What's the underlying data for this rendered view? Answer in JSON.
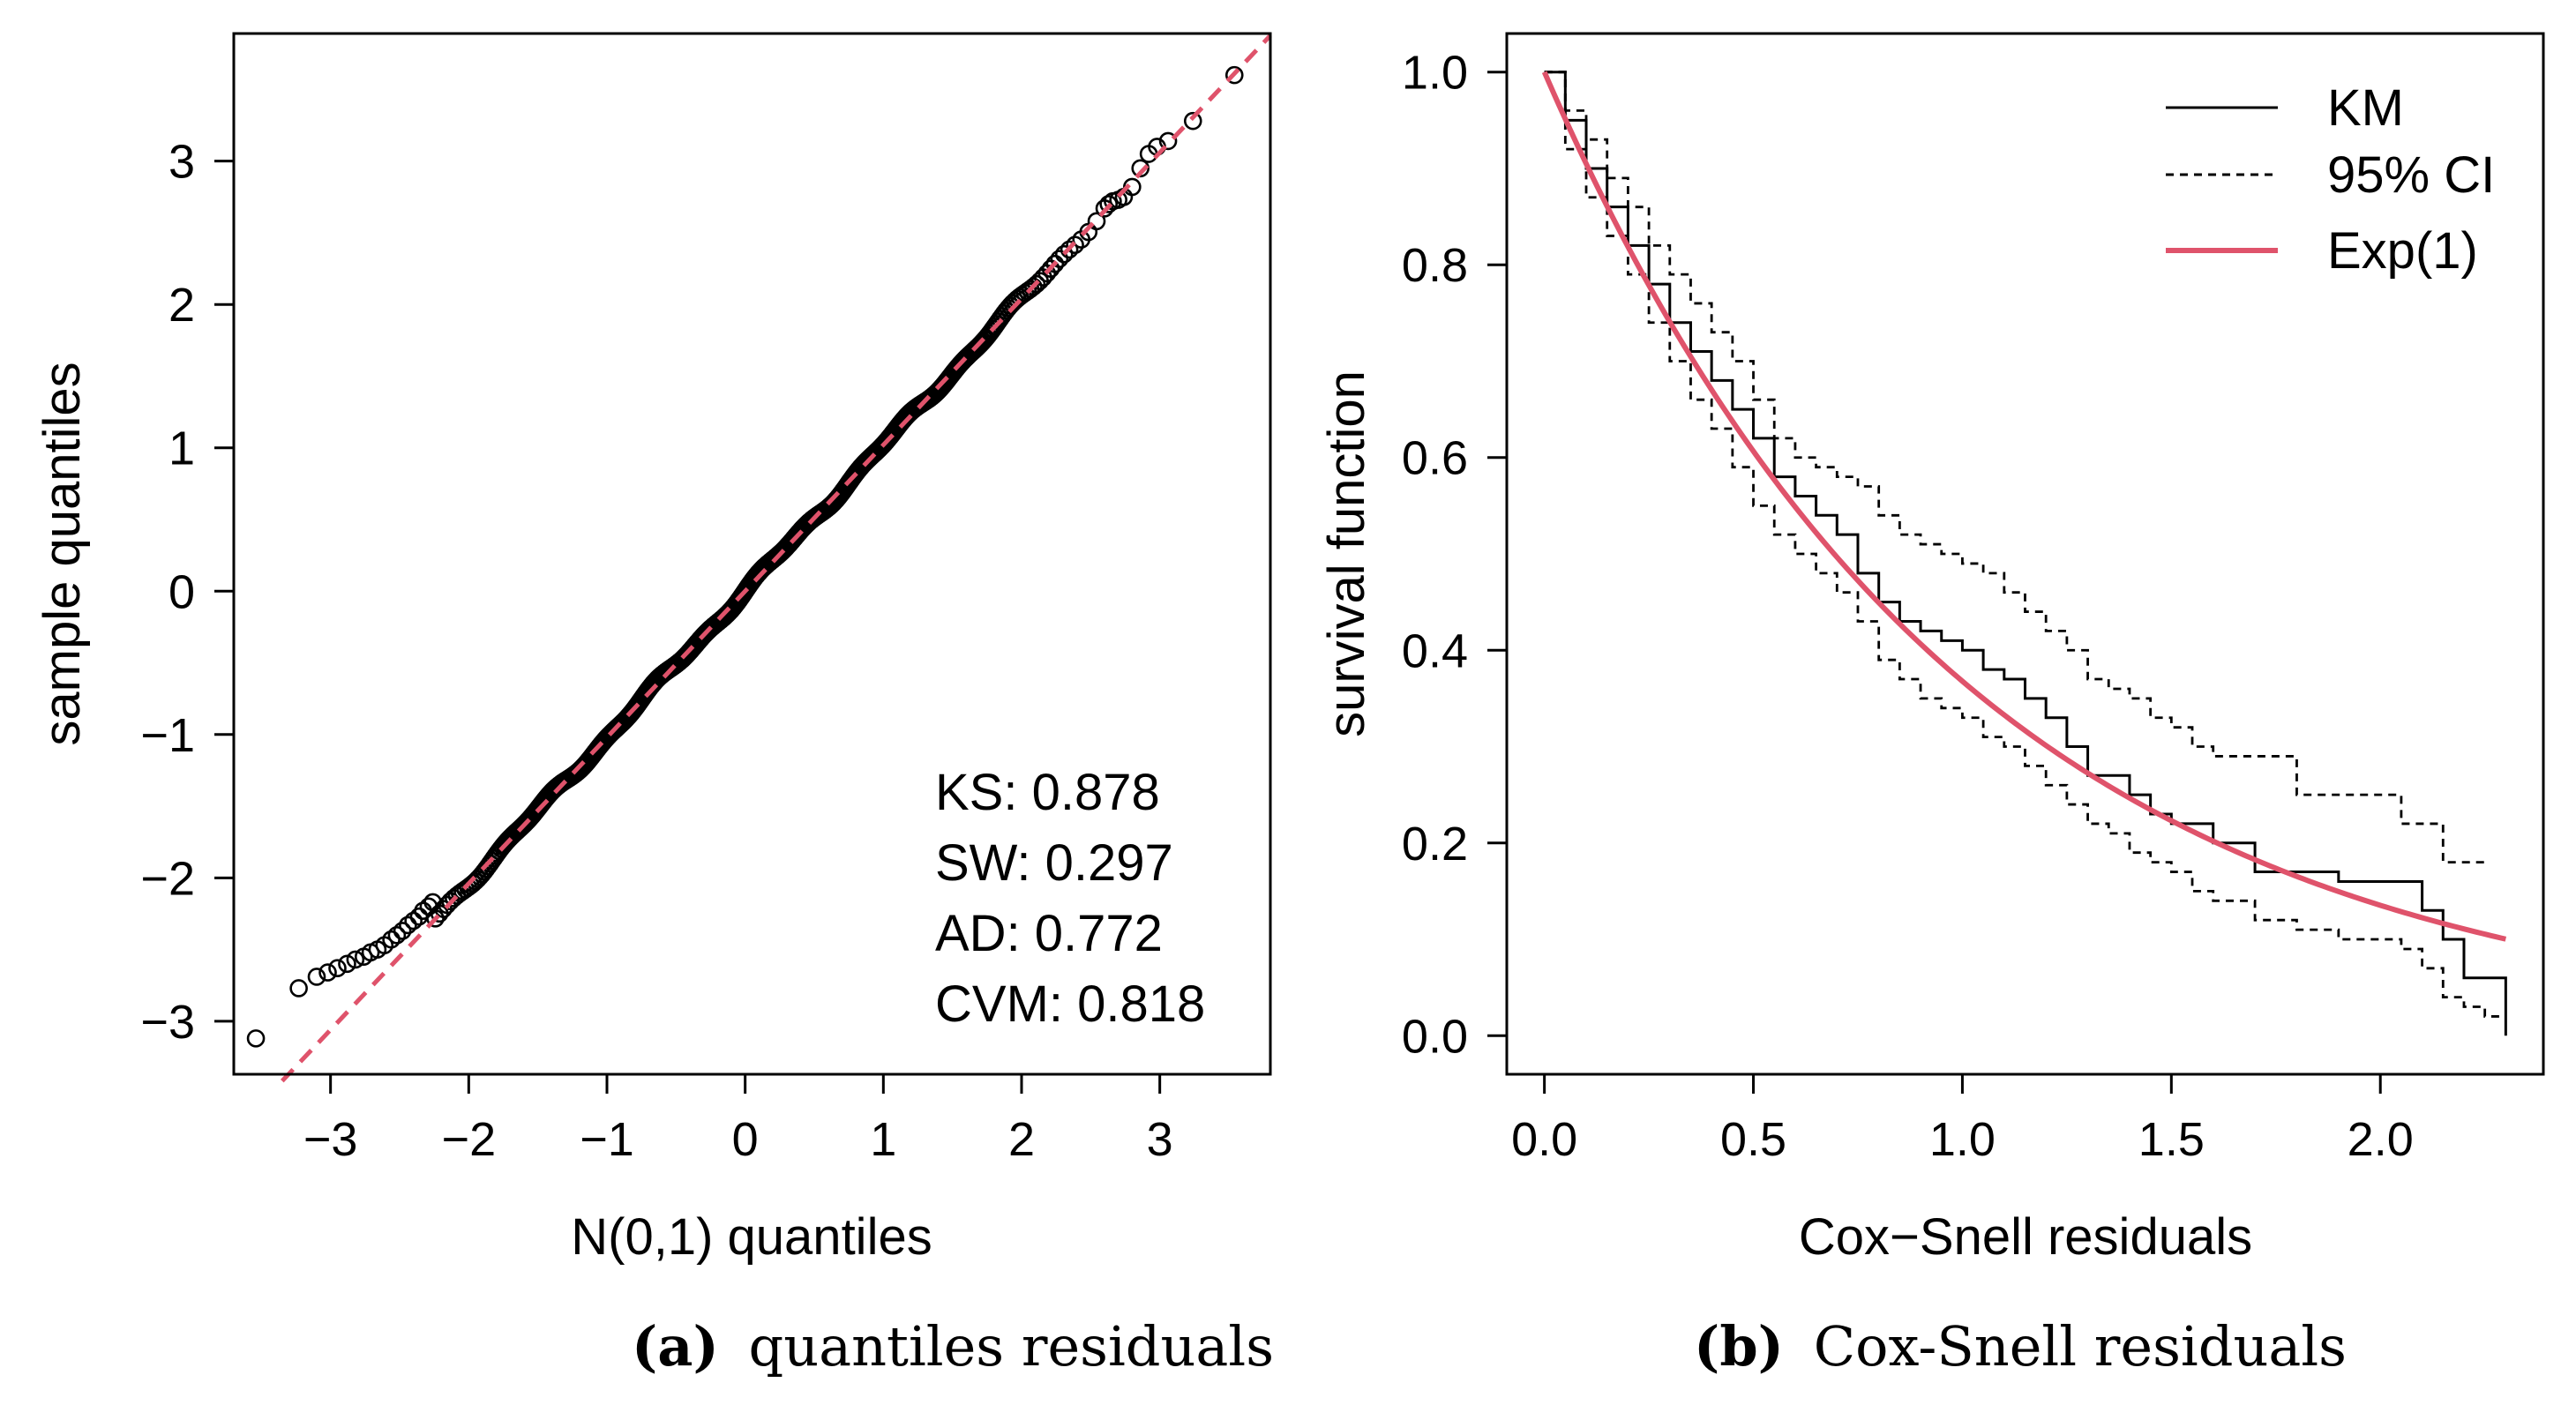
{
  "colors": {
    "reference": "#df536b",
    "ink": "#000000",
    "background": "#ffffff"
  },
  "panels": {
    "a": {
      "caption_label": "(a)",
      "caption_text": "quantiles residuals"
    },
    "b": {
      "caption_label": "(b)",
      "caption_text": "Cox-Snell residuals"
    }
  },
  "chart_data": [
    {
      "id": "qq",
      "type": "scatter",
      "title": "",
      "xlabel": "N(0,1) quantiles",
      "ylabel": "sample quantiles",
      "xlim": [
        -3.7,
        3.8
      ],
      "ylim": [
        -3.37,
        3.89
      ],
      "x_ticks": [
        -3,
        -2,
        -1,
        0,
        1,
        2,
        3
      ],
      "y_ticks": [
        -3,
        -2,
        -1,
        0,
        1,
        2,
        3
      ],
      "x_tick_labels": [
        "−3",
        "−2",
        "−1",
        "0",
        "1",
        "2",
        "3"
      ],
      "y_tick_labels": [
        "−3",
        "−2",
        "−1",
        "0",
        "1",
        "2",
        "3"
      ],
      "n_points": 1000,
      "reference_line": {
        "intercept": 0.0,
        "slope": 1.02,
        "style": "dashed",
        "color": "#df536b"
      },
      "tail_points": [
        [
          -3.54,
          -3.12
        ],
        [
          -3.23,
          -2.77
        ],
        [
          -3.1,
          -2.69
        ],
        [
          -3.02,
          -2.66
        ],
        [
          -2.95,
          -2.63
        ],
        [
          -2.88,
          -2.6
        ],
        [
          -2.82,
          -2.57
        ],
        [
          -2.76,
          -2.55
        ],
        [
          -2.71,
          -2.52
        ],
        [
          -2.66,
          -2.5
        ],
        [
          -2.61,
          -2.47
        ],
        [
          -2.56,
          -2.43
        ],
        [
          -2.52,
          -2.4
        ],
        [
          -2.48,
          -2.37
        ],
        [
          -2.44,
          -2.33
        ],
        [
          -2.4,
          -2.3
        ],
        [
          -2.36,
          -2.27
        ],
        [
          -2.33,
          -2.23
        ],
        [
          -2.29,
          -2.2
        ],
        [
          -2.26,
          -2.17
        ],
        [
          2.6,
          2.67
        ],
        [
          2.63,
          2.7
        ],
        [
          2.66,
          2.72
        ],
        [
          2.7,
          2.73
        ],
        [
          2.74,
          2.75
        ],
        [
          2.8,
          2.82
        ],
        [
          2.86,
          2.95
        ],
        [
          2.92,
          3.05
        ],
        [
          2.98,
          3.1
        ],
        [
          3.06,
          3.14
        ],
        [
          3.24,
          3.28
        ],
        [
          3.54,
          3.6
        ]
      ],
      "annotations": [
        "KS: 0.878",
        "SW: 0.297",
        "AD: 0.772",
        "CVM: 0.818"
      ]
    },
    {
      "id": "coxsnell",
      "type": "line",
      "title": "",
      "xlabel": "Cox−Snell residuals",
      "ylabel": "survival function",
      "xlim": [
        -0.09,
        2.39
      ],
      "ylim": [
        -0.04,
        1.04
      ],
      "x_ticks": [
        0.0,
        0.5,
        1.0,
        1.5,
        2.0
      ],
      "y_ticks": [
        0.0,
        0.2,
        0.4,
        0.6,
        0.8,
        1.0
      ],
      "x_tick_labels": [
        "0.0",
        "0.5",
        "1.0",
        "1.5",
        "2.0"
      ],
      "y_tick_labels": [
        "0.0",
        "0.2",
        "0.4",
        "0.6",
        "0.8",
        "1.0"
      ],
      "legend": {
        "position": "top-right",
        "entries": [
          {
            "label": "KM",
            "style": "solid",
            "color": "#000000"
          },
          {
            "label": "95% CI",
            "style": "dotted",
            "color": "#000000"
          },
          {
            "label": "Exp(1)",
            "style": "solid-thick",
            "color": "#df536b"
          }
        ]
      },
      "series": [
        {
          "name": "KM",
          "style": "step",
          "points": [
            [
              0.0,
              1.0
            ],
            [
              0.05,
              0.95
            ],
            [
              0.1,
              0.9
            ],
            [
              0.15,
              0.86
            ],
            [
              0.2,
              0.82
            ],
            [
              0.25,
              0.78
            ],
            [
              0.3,
              0.74
            ],
            [
              0.35,
              0.71
            ],
            [
              0.4,
              0.68
            ],
            [
              0.45,
              0.65
            ],
            [
              0.5,
              0.62
            ],
            [
              0.55,
              0.58
            ],
            [
              0.6,
              0.56
            ],
            [
              0.65,
              0.54
            ],
            [
              0.7,
              0.52
            ],
            [
              0.75,
              0.48
            ],
            [
              0.8,
              0.45
            ],
            [
              0.85,
              0.43
            ],
            [
              0.9,
              0.42
            ],
            [
              0.95,
              0.41
            ],
            [
              1.0,
              0.4
            ],
            [
              1.05,
              0.38
            ],
            [
              1.1,
              0.37
            ],
            [
              1.15,
              0.35
            ],
            [
              1.2,
              0.33
            ],
            [
              1.25,
              0.3
            ],
            [
              1.3,
              0.27
            ],
            [
              1.35,
              0.27
            ],
            [
              1.4,
              0.25
            ],
            [
              1.45,
              0.23
            ],
            [
              1.5,
              0.22
            ],
            [
              1.55,
              0.22
            ],
            [
              1.6,
              0.2
            ],
            [
              1.7,
              0.17
            ],
            [
              1.8,
              0.17
            ],
            [
              1.9,
              0.16
            ],
            [
              2.0,
              0.16
            ],
            [
              2.05,
              0.16
            ],
            [
              2.1,
              0.13
            ],
            [
              2.15,
              0.1
            ],
            [
              2.2,
              0.06
            ],
            [
              2.3,
              0.06
            ],
            [
              2.3,
              0.0
            ]
          ]
        },
        {
          "name": "95% CI upper",
          "style": "step-dotted",
          "points": [
            [
              0.0,
              1.0
            ],
            [
              0.05,
              0.96
            ],
            [
              0.1,
              0.93
            ],
            [
              0.15,
              0.89
            ],
            [
              0.2,
              0.86
            ],
            [
              0.25,
              0.82
            ],
            [
              0.3,
              0.79
            ],
            [
              0.35,
              0.76
            ],
            [
              0.4,
              0.73
            ],
            [
              0.45,
              0.7
            ],
            [
              0.5,
              0.66
            ],
            [
              0.55,
              0.62
            ],
            [
              0.6,
              0.6
            ],
            [
              0.65,
              0.59
            ],
            [
              0.7,
              0.58
            ],
            [
              0.75,
              0.57
            ],
            [
              0.8,
              0.54
            ],
            [
              0.85,
              0.52
            ],
            [
              0.9,
              0.51
            ],
            [
              0.95,
              0.5
            ],
            [
              1.0,
              0.49
            ],
            [
              1.05,
              0.48
            ],
            [
              1.1,
              0.46
            ],
            [
              1.15,
              0.44
            ],
            [
              1.2,
              0.42
            ],
            [
              1.25,
              0.4
            ],
            [
              1.3,
              0.37
            ],
            [
              1.35,
              0.36
            ],
            [
              1.4,
              0.35
            ],
            [
              1.45,
              0.33
            ],
            [
              1.5,
              0.32
            ],
            [
              1.55,
              0.3
            ],
            [
              1.6,
              0.29
            ],
            [
              1.7,
              0.29
            ],
            [
              1.8,
              0.25
            ],
            [
              1.9,
              0.25
            ],
            [
              2.0,
              0.25
            ],
            [
              2.05,
              0.22
            ],
            [
              2.1,
              0.22
            ],
            [
              2.15,
              0.18
            ],
            [
              2.25,
              0.18
            ]
          ]
        },
        {
          "name": "95% CI lower",
          "style": "step-dotted",
          "points": [
            [
              0.0,
              1.0
            ],
            [
              0.05,
              0.92
            ],
            [
              0.1,
              0.87
            ],
            [
              0.15,
              0.83
            ],
            [
              0.2,
              0.79
            ],
            [
              0.25,
              0.74
            ],
            [
              0.3,
              0.7
            ],
            [
              0.35,
              0.66
            ],
            [
              0.4,
              0.63
            ],
            [
              0.45,
              0.59
            ],
            [
              0.5,
              0.55
            ],
            [
              0.55,
              0.52
            ],
            [
              0.6,
              0.5
            ],
            [
              0.65,
              0.48
            ],
            [
              0.7,
              0.46
            ],
            [
              0.75,
              0.43
            ],
            [
              0.8,
              0.39
            ],
            [
              0.85,
              0.37
            ],
            [
              0.9,
              0.35
            ],
            [
              0.95,
              0.34
            ],
            [
              1.0,
              0.33
            ],
            [
              1.05,
              0.31
            ],
            [
              1.1,
              0.3
            ],
            [
              1.15,
              0.28
            ],
            [
              1.2,
              0.26
            ],
            [
              1.25,
              0.24
            ],
            [
              1.3,
              0.22
            ],
            [
              1.35,
              0.21
            ],
            [
              1.4,
              0.19
            ],
            [
              1.45,
              0.18
            ],
            [
              1.5,
              0.17
            ],
            [
              1.55,
              0.15
            ],
            [
              1.6,
              0.14
            ],
            [
              1.7,
              0.12
            ],
            [
              1.8,
              0.11
            ],
            [
              1.9,
              0.1
            ],
            [
              2.0,
              0.1
            ],
            [
              2.05,
              0.09
            ],
            [
              2.1,
              0.07
            ],
            [
              2.15,
              0.04
            ],
            [
              2.2,
              0.03
            ],
            [
              2.25,
              0.02
            ],
            [
              2.3,
              0.02
            ]
          ]
        },
        {
          "name": "Exp(1)",
          "style": "curve",
          "function": "exp(-x)",
          "domain": [
            0.0,
            2.3
          ]
        }
      ]
    }
  ]
}
